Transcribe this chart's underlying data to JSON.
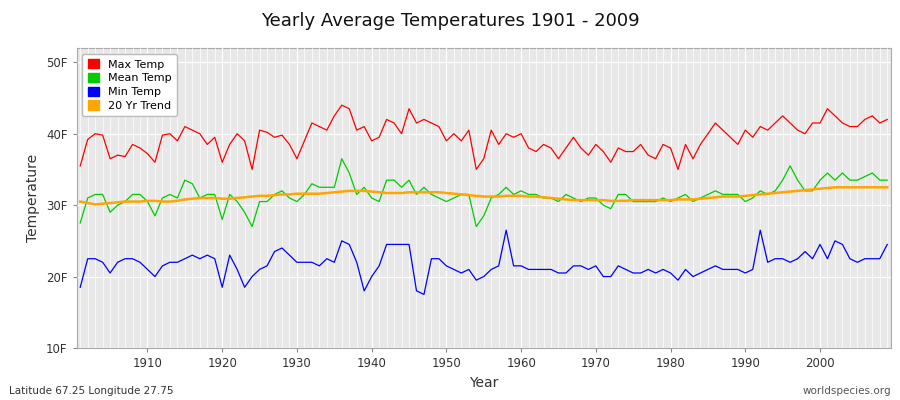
{
  "title": "Yearly Average Temperatures 1901 - 2009",
  "xlabel": "Year",
  "ylabel": "Temperature",
  "lat_lon_label": "Latitude 67.25 Longitude 27.75",
  "credit_label": "worldspecies.org",
  "year_start": 1901,
  "year_end": 2009,
  "ylim": [
    10,
    52
  ],
  "yticks": [
    10,
    20,
    30,
    40,
    50
  ],
  "ytick_labels": [
    "10F",
    "20F",
    "30F",
    "40F",
    "50F"
  ],
  "fig_bg_color": "#ffffff",
  "plot_bg_color": "#e8e8e8",
  "grid_color": "#ffffff",
  "legend_entries": [
    "Max Temp",
    "Mean Temp",
    "Min Temp",
    "20 Yr Trend"
  ],
  "legend_colors": [
    "#ff0000",
    "#00cc00",
    "#0000ff",
    "#ffa500"
  ],
  "max_temp": [
    35.5,
    39.2,
    40.0,
    39.8,
    36.5,
    37.0,
    36.8,
    38.5,
    38.0,
    37.2,
    36.0,
    39.8,
    40.0,
    39.0,
    41.0,
    40.5,
    40.0,
    38.5,
    39.5,
    36.0,
    38.5,
    40.0,
    39.0,
    35.0,
    40.5,
    40.2,
    39.5,
    39.8,
    38.5,
    36.5,
    39.0,
    41.5,
    41.0,
    40.5,
    42.5,
    44.0,
    43.5,
    40.5,
    41.0,
    39.0,
    39.5,
    42.0,
    41.5,
    40.0,
    43.5,
    41.5,
    42.0,
    41.5,
    41.0,
    39.0,
    40.0,
    39.0,
    40.5,
    35.0,
    36.5,
    40.5,
    38.5,
    40.0,
    39.5,
    40.0,
    38.0,
    37.5,
    38.5,
    38.0,
    36.5,
    38.0,
    39.5,
    38.0,
    37.0,
    38.5,
    37.5,
    36.0,
    38.0,
    37.5,
    37.5,
    38.5,
    37.0,
    36.5,
    38.5,
    38.0,
    35.0,
    38.5,
    36.5,
    38.5,
    40.0,
    41.5,
    40.5,
    39.5,
    38.5,
    40.5,
    39.5,
    41.0,
    40.5,
    41.5,
    42.5,
    41.5,
    40.5,
    40.0,
    41.5,
    41.5,
    43.5,
    42.5,
    41.5,
    41.0,
    41.0,
    42.0,
    42.5,
    41.5,
    42.0
  ],
  "mean_temp": [
    27.5,
    31.0,
    31.5,
    31.5,
    29.0,
    30.0,
    30.5,
    31.5,
    31.5,
    30.5,
    28.5,
    31.0,
    31.5,
    31.0,
    33.5,
    33.0,
    31.0,
    31.5,
    31.5,
    28.0,
    31.5,
    30.5,
    29.0,
    27.0,
    30.5,
    30.5,
    31.5,
    32.0,
    31.0,
    30.5,
    31.5,
    33.0,
    32.5,
    32.5,
    32.5,
    36.5,
    34.5,
    31.5,
    32.5,
    31.0,
    30.5,
    33.5,
    33.5,
    32.5,
    33.5,
    31.5,
    32.5,
    31.5,
    31.0,
    30.5,
    31.0,
    31.5,
    31.5,
    27.0,
    28.5,
    31.0,
    31.5,
    32.5,
    31.5,
    32.0,
    31.5,
    31.5,
    31.0,
    31.0,
    30.5,
    31.5,
    31.0,
    30.5,
    31.0,
    31.0,
    30.0,
    29.5,
    31.5,
    31.5,
    30.5,
    30.5,
    30.5,
    30.5,
    31.0,
    30.5,
    31.0,
    31.5,
    30.5,
    31.0,
    31.5,
    32.0,
    31.5,
    31.5,
    31.5,
    30.5,
    31.0,
    32.0,
    31.5,
    32.0,
    33.5,
    35.5,
    33.5,
    32.0,
    32.0,
    33.5,
    34.5,
    33.5,
    34.5,
    33.5,
    33.5,
    34.0,
    34.5,
    33.5,
    33.5
  ],
  "min_temp": [
    18.5,
    22.5,
    22.5,
    22.0,
    20.5,
    22.0,
    22.5,
    22.5,
    22.0,
    21.0,
    20.0,
    21.5,
    22.0,
    22.0,
    22.5,
    23.0,
    22.5,
    23.0,
    22.5,
    18.5,
    23.0,
    21.0,
    18.5,
    20.0,
    21.0,
    21.5,
    23.5,
    24.0,
    23.0,
    22.0,
    22.0,
    22.0,
    21.5,
    22.5,
    22.0,
    25.0,
    24.5,
    22.0,
    18.0,
    20.0,
    21.5,
    24.5,
    24.5,
    24.5,
    24.5,
    18.0,
    17.5,
    22.5,
    22.5,
    21.5,
    21.0,
    20.5,
    21.0,
    19.5,
    20.0,
    21.0,
    21.5,
    26.5,
    21.5,
    21.5,
    21.0,
    21.0,
    21.0,
    21.0,
    20.5,
    20.5,
    21.5,
    21.5,
    21.0,
    21.5,
    20.0,
    20.0,
    21.5,
    21.0,
    20.5,
    20.5,
    21.0,
    20.5,
    21.0,
    20.5,
    19.5,
    21.0,
    20.0,
    20.5,
    21.0,
    21.5,
    21.0,
    21.0,
    21.0,
    20.5,
    21.0,
    26.5,
    22.0,
    22.5,
    22.5,
    22.0,
    22.5,
    23.5,
    22.5,
    24.5,
    22.5,
    25.0,
    24.5,
    22.5,
    22.0,
    22.5,
    22.5,
    22.5,
    24.5
  ],
  "trend_20yr": [
    30.5,
    30.3,
    30.1,
    30.2,
    30.3,
    30.4,
    30.5,
    30.5,
    30.5,
    30.6,
    30.6,
    30.5,
    30.5,
    30.6,
    30.8,
    30.9,
    31.0,
    31.0,
    31.0,
    30.9,
    30.9,
    31.0,
    31.1,
    31.2,
    31.3,
    31.3,
    31.4,
    31.5,
    31.5,
    31.6,
    31.6,
    31.6,
    31.6,
    31.7,
    31.8,
    31.9,
    32.0,
    32.0,
    32.0,
    31.9,
    31.8,
    31.7,
    31.7,
    31.7,
    31.8,
    31.8,
    31.8,
    31.8,
    31.8,
    31.7,
    31.6,
    31.5,
    31.4,
    31.3,
    31.2,
    31.2,
    31.2,
    31.3,
    31.3,
    31.3,
    31.2,
    31.2,
    31.1,
    31.0,
    30.9,
    30.8,
    30.7,
    30.7,
    30.7,
    30.7,
    30.7,
    30.6,
    30.6,
    30.6,
    30.7,
    30.7,
    30.7,
    30.7,
    30.7,
    30.7,
    30.8,
    30.8,
    30.8,
    30.9,
    31.0,
    31.1,
    31.2,
    31.2,
    31.2,
    31.3,
    31.4,
    31.5,
    31.6,
    31.7,
    31.8,
    31.9,
    32.0,
    32.1,
    32.2,
    32.3,
    32.4,
    32.5,
    32.5,
    32.5,
    32.5,
    32.5,
    32.5,
    32.5,
    32.5
  ]
}
